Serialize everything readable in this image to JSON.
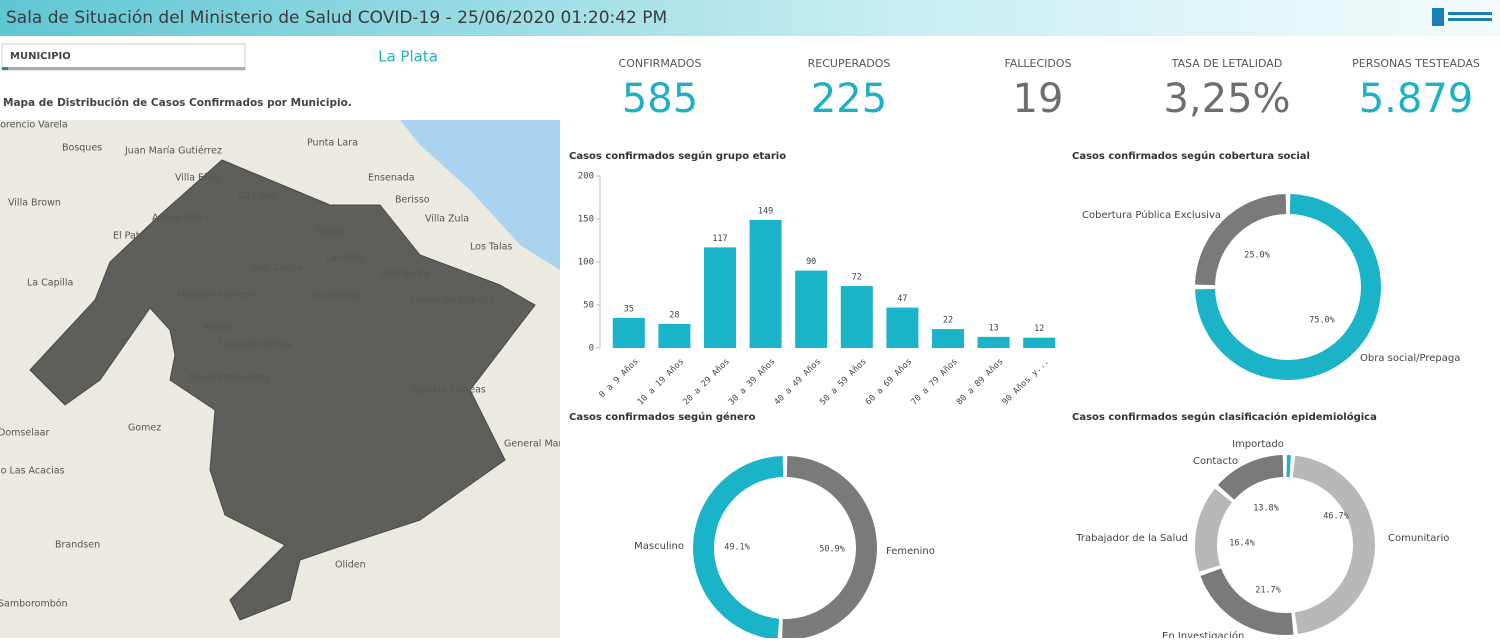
{
  "header": {
    "title": "Sala de Situación del Ministerio de Salud COVID-19 - 25/06/2020 01:20:42 PM"
  },
  "filter": {
    "label": "MUNICIPIO",
    "selection": "La Plata"
  },
  "map": {
    "title": "Mapa de Distribución de Casos Confirmados por Municipio.",
    "places": [
      "Florencio Varela",
      "Bosques",
      "Juan María Gutiérrez",
      "Punta Lara",
      "Villa Elisa",
      "Ensenada",
      "City Bell",
      "Berisso",
      "Villa Brown",
      "Arturo Seguí",
      "Villa Zula",
      "Tolosa",
      "El Pato",
      "Los Talas",
      "La Plata",
      "San Carlos",
      "Villa Elvira",
      "La Capilla",
      "Melchor Romero",
      "Los Hornos",
      "Lomas de Copello",
      "Abasto",
      "Lisandro Olmos",
      "Angel Etcheverry",
      "Ignacio Correas",
      "Gomez",
      "Domselaar",
      "General Mansilla",
      "Barrio Las Acacias",
      "Brandsen",
      "Oliden",
      "Samborombón"
    ]
  },
  "kpis": [
    {
      "label": "CONFIRMADOS",
      "value": "585",
      "color": "#1fb0c4"
    },
    {
      "label": "RECUPERADOS",
      "value": "225",
      "color": "#1fb0c4"
    },
    {
      "label": "FALLECIDOS",
      "value": "19",
      "color": "#6e6e6e"
    },
    {
      "label": "TASA DE LETALIDAD",
      "value": "3,25%",
      "color": "#6e6e6e"
    },
    {
      "label": "PERSONAS TESTEADAS",
      "value": "5.879",
      "color": "#1fb0c4"
    }
  ],
  "charts": [
    {
      "type": "bar",
      "title": "Casos confirmados según grupo etario",
      "categories": [
        "0 a 9 Años",
        "10 a 19 Años",
        "20 a 29 Años",
        "30 a 39 Años",
        "40 a 49 Años",
        "50 a 59 Años",
        "60 a 69 Años",
        "70 a 79 Años",
        "80 a 89 Años",
        "90 Años y..."
      ],
      "values": [
        35,
        28,
        117,
        149,
        90,
        72,
        47,
        22,
        13,
        12
      ],
      "color": "#1bb3c8",
      "ylim": [
        0,
        200
      ],
      "yticks": [
        0,
        50,
        100,
        150,
        200
      ]
    },
    {
      "type": "donut",
      "title": "Casos confirmados según cobertura social",
      "categories": [
        "Obra social/Prepaga",
        "Cobertura Pública Exclusiva"
      ],
      "values": [
        75,
        25
      ],
      "value_labels": [
        "75.0%",
        "25.0%"
      ],
      "colors": [
        "#1bb3c8",
        "#7a7a7a"
      ]
    },
    {
      "type": "donut",
      "title": "Casos confirmados según género",
      "categories": [
        "Femenino",
        "Masculino"
      ],
      "values": [
        50.9,
        49.1
      ],
      "value_labels": [
        "50.9%",
        "49.1%"
      ],
      "colors": [
        "#7a7a7a",
        "#1bb3c8"
      ]
    },
    {
      "type": "donut",
      "title": "Casos confirmados según clasificación epidemiológica",
      "categories": [
        "Importado",
        "Comunitario",
        "En Investigación",
        "Trabajador de la Salud",
        "Contacto"
      ],
      "values": [
        1.4,
        46.7,
        21.7,
        16.4,
        13.8
      ],
      "value_labels": [
        null,
        "46.7%",
        "21.7%",
        "16.4%",
        "13.8%"
      ],
      "colors": [
        "#1bb3c8",
        "#b8b8b8",
        "#7a7a7a",
        "#b8b8b8",
        "#7a7a7a"
      ]
    }
  ]
}
